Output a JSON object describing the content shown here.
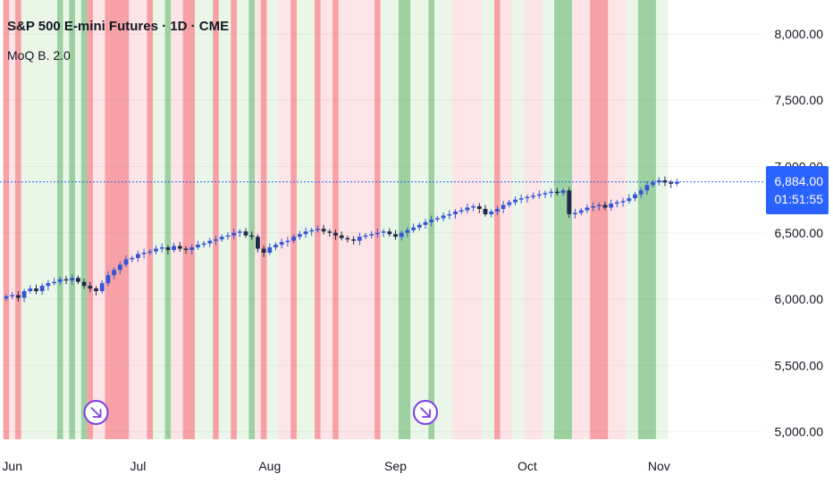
{
  "legend": {
    "symbol": "S&P 500 E-mini Futures · 1D · CME",
    "indicator": "MoQ B. 2.0"
  },
  "price_tag": {
    "price": "6,884.00",
    "countdown": "01:51:55"
  },
  "colors": {
    "bg_green": "#9dd1a1",
    "bg_red": "#f7a1a6",
    "bg_light_green": "#e9f6e8",
    "bg_light_red": "#fde4e6",
    "candle": "#1e2a4a",
    "candle_up": "#3355d6",
    "price_line": "#2962ff",
    "event_icon": "#7b3fe4"
  },
  "chart_data": {
    "type": "candlestick",
    "title": "S&P 500 E-mini Futures · 1D · CME",
    "indicator": "MoQ B. 2.0",
    "ylim": [
      4950,
      8200
    ],
    "y_ticks": [
      5000,
      5500,
      6000,
      6500,
      7000,
      7500,
      8000
    ],
    "y_tick_labels": [
      "5,000.00",
      "5,500.00",
      "6,000.00",
      "6,500.00",
      "7,000.00",
      "7,500.00",
      "8,000.00"
    ],
    "x_tick_labels": [
      {
        "label": "Jun",
        "bar": 1
      },
      {
        "label": "Jul",
        "bar": 22
      },
      {
        "label": "Aug",
        "bar": 44
      },
      {
        "label": "Sep",
        "bar": 65
      },
      {
        "label": "Oct",
        "bar": 87
      },
      {
        "label": "Nov",
        "bar": 109
      }
    ],
    "last_price": 6884,
    "closes": [
      6020,
      6030,
      6010,
      6060,
      6080,
      6060,
      6100,
      6120,
      6130,
      6150,
      6140,
      6160,
      6130,
      6100,
      6080,
      6060,
      6120,
      6180,
      6220,
      6260,
      6300,
      6310,
      6340,
      6350,
      6360,
      6380,
      6390,
      6370,
      6400,
      6380,
      6370,
      6390,
      6410,
      6420,
      6440,
      6450,
      6470,
      6480,
      6500,
      6510,
      6480,
      6470,
      6380,
      6350,
      6390,
      6410,
      6430,
      6440,
      6470,
      6490,
      6510,
      6520,
      6530,
      6510,
      6500,
      6480,
      6460,
      6450,
      6440,
      6470,
      6480,
      6490,
      6500,
      6510,
      6490,
      6470,
      6500,
      6520,
      6540,
      6560,
      6580,
      6600,
      6610,
      6630,
      6640,
      6660,
      6670,
      6690,
      6700,
      6680,
      6640,
      6660,
      6680,
      6710,
      6730,
      6750,
      6760,
      6770,
      6780,
      6790,
      6800,
      6810,
      6800,
      6820,
      6640,
      6650,
      6670,
      6690,
      6700,
      6710,
      6690,
      6720,
      6730,
      6740,
      6760,
      6790,
      6820,
      6860,
      6880,
      6895,
      6880,
      6870,
      6884
    ],
    "background_bands": [
      {
        "from": 0,
        "to": 1,
        "state": "strong_bear"
      },
      {
        "from": 1,
        "to": 2,
        "state": "weak_bear"
      },
      {
        "from": 2,
        "to": 3,
        "state": "strong_bear"
      },
      {
        "from": 3,
        "to": 9,
        "state": "weak_bull"
      },
      {
        "from": 9,
        "to": 10,
        "state": "strong_bull"
      },
      {
        "from": 10,
        "to": 11,
        "state": "weak_bull"
      },
      {
        "from": 11,
        "to": 12,
        "state": "strong_bull"
      },
      {
        "from": 12,
        "to": 13,
        "state": "weak_bull"
      },
      {
        "from": 13,
        "to": 14,
        "state": "strong_bull"
      },
      {
        "from": 14,
        "to": 15,
        "state": "strong_bear"
      },
      {
        "from": 15,
        "to": 17,
        "state": "weak_bear"
      },
      {
        "from": 17,
        "to": 21,
        "state": "strong_bear"
      },
      {
        "from": 21,
        "to": 24,
        "state": "weak_bear"
      },
      {
        "from": 24,
        "to": 25,
        "state": "strong_bear"
      },
      {
        "from": 25,
        "to": 27,
        "state": "weak_bull"
      },
      {
        "from": 27,
        "to": 28,
        "state": "strong_bull"
      },
      {
        "from": 28,
        "to": 30,
        "state": "weak_bear"
      },
      {
        "from": 30,
        "to": 32,
        "state": "strong_bear"
      },
      {
        "from": 32,
        "to": 35,
        "state": "weak_bull"
      },
      {
        "from": 35,
        "to": 36,
        "state": "strong_bear"
      },
      {
        "from": 36,
        "to": 38,
        "state": "weak_bull"
      },
      {
        "from": 38,
        "to": 39,
        "state": "strong_bear"
      },
      {
        "from": 39,
        "to": 41,
        "state": "weak_bull"
      },
      {
        "from": 41,
        "to": 42,
        "state": "strong_bull"
      },
      {
        "from": 42,
        "to": 43,
        "state": "weak_bear"
      },
      {
        "from": 43,
        "to": 44,
        "state": "strong_bear"
      },
      {
        "from": 44,
        "to": 46,
        "state": "weak_bull"
      },
      {
        "from": 46,
        "to": 48,
        "state": "weak_bear"
      },
      {
        "from": 48,
        "to": 49,
        "state": "strong_bear"
      },
      {
        "from": 49,
        "to": 52,
        "state": "weak_bull"
      },
      {
        "from": 52,
        "to": 53,
        "state": "strong_bear"
      },
      {
        "from": 53,
        "to": 55,
        "state": "weak_bear"
      },
      {
        "from": 55,
        "to": 56,
        "state": "strong_bear"
      },
      {
        "from": 56,
        "to": 62,
        "state": "weak_bear"
      },
      {
        "from": 62,
        "to": 63,
        "state": "strong_bear"
      },
      {
        "from": 63,
        "to": 66,
        "state": "weak_bull"
      },
      {
        "from": 66,
        "to": 68,
        "state": "strong_bull"
      },
      {
        "from": 68,
        "to": 71,
        "state": "weak_bull"
      },
      {
        "from": 71,
        "to": 72,
        "state": "strong_bull"
      },
      {
        "from": 72,
        "to": 75,
        "state": "weak_bull"
      },
      {
        "from": 75,
        "to": 80,
        "state": "weak_bear"
      },
      {
        "from": 80,
        "to": 82,
        "state": "weak_bull"
      },
      {
        "from": 82,
        "to": 83,
        "state": "strong_bear"
      },
      {
        "from": 83,
        "to": 85,
        "state": "weak_bear"
      },
      {
        "from": 85,
        "to": 87,
        "state": "weak_bull"
      },
      {
        "from": 87,
        "to": 90,
        "state": "weak_bear"
      },
      {
        "from": 90,
        "to": 92,
        "state": "weak_bull"
      },
      {
        "from": 92,
        "to": 95,
        "state": "strong_bull"
      },
      {
        "from": 95,
        "to": 98,
        "state": "weak_bear"
      },
      {
        "from": 98,
        "to": 101,
        "state": "strong_bear"
      },
      {
        "from": 101,
        "to": 104,
        "state": "weak_bear"
      },
      {
        "from": 104,
        "to": 106,
        "state": "weak_bull"
      },
      {
        "from": 106,
        "to": 109,
        "state": "strong_bull"
      },
      {
        "from": 109,
        "to": 111,
        "state": "weak_bull"
      }
    ],
    "event_markers": [
      {
        "bar": 15
      },
      {
        "bar": 70
      }
    ]
  }
}
